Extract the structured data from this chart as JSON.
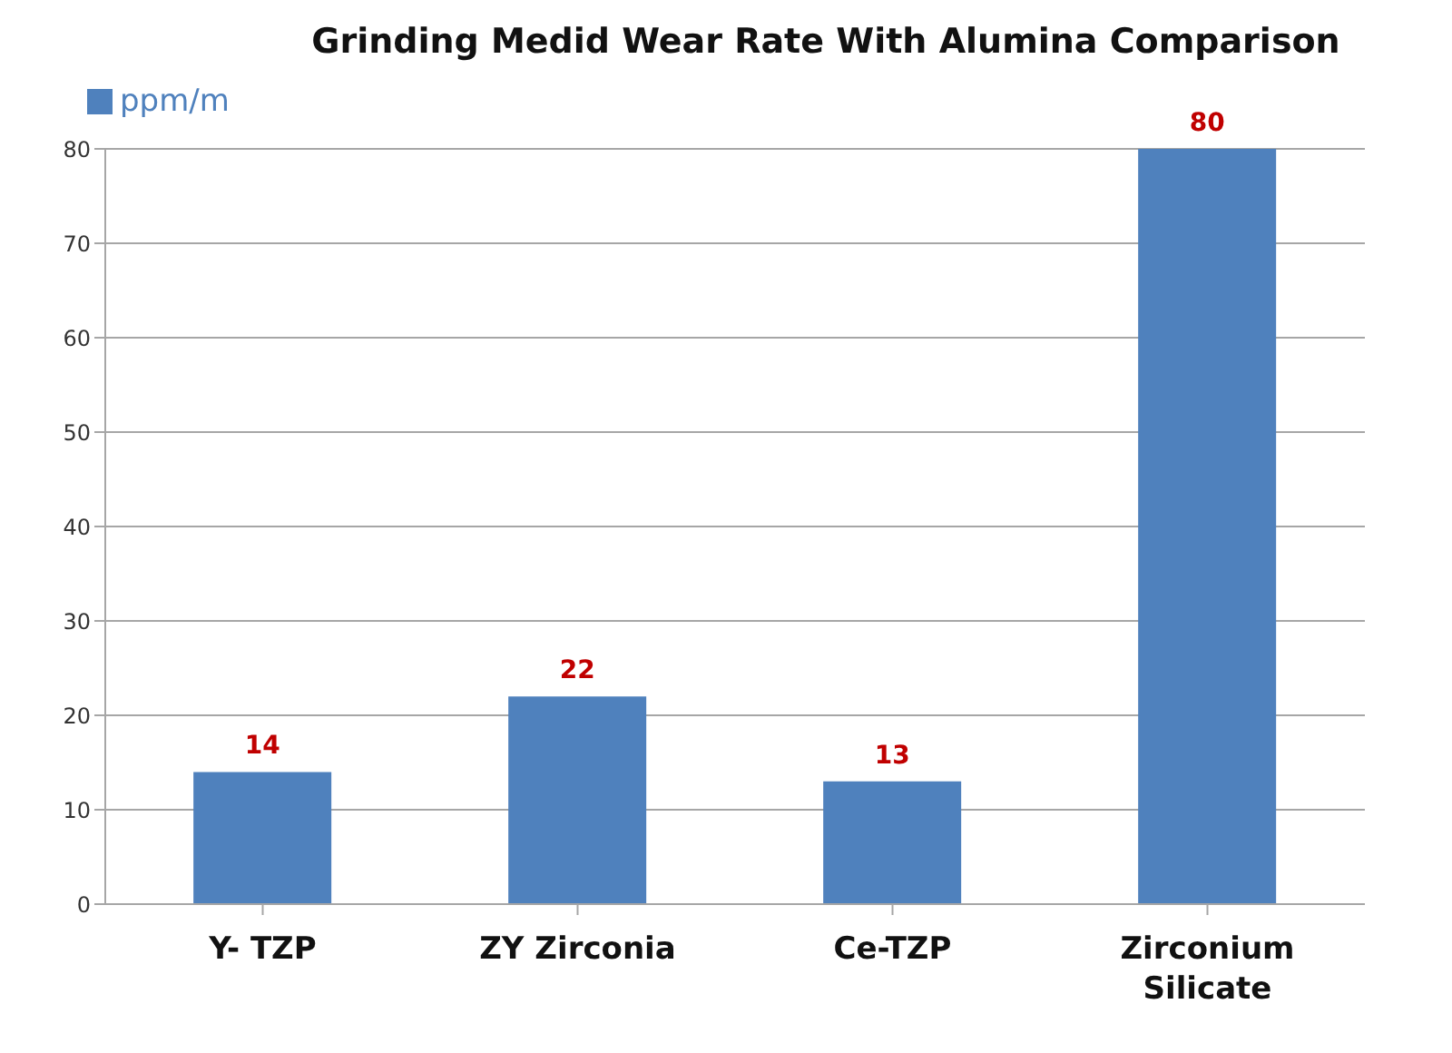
{
  "chart_data": {
    "type": "bar",
    "title": "Grinding Medid Wear Rate With Alumina Comparison",
    "categories": [
      "Y- TZP",
      "ZY Zirconia",
      "Ce-TZP",
      "Zirconium Silicate"
    ],
    "series": [
      {
        "name": "ppm/m",
        "color": "#4f81bd",
        "values": [
          14,
          22,
          13,
          80
        ]
      }
    ],
    "ylim": [
      0,
      80
    ],
    "yticks": [
      0,
      10,
      20,
      30,
      40,
      50,
      60,
      70,
      80
    ],
    "grid": "y",
    "legend": "top left",
    "data_labels": true
  }
}
